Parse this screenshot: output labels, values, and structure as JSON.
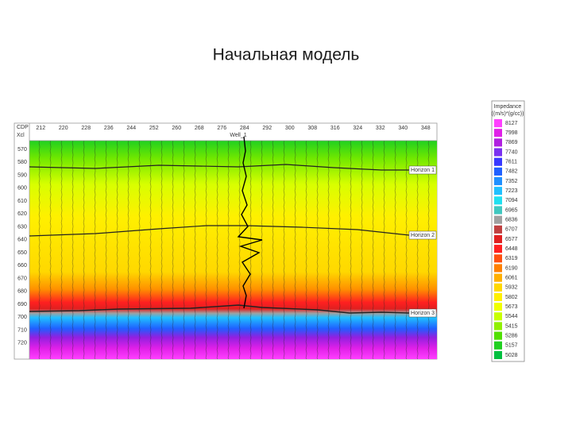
{
  "slide": {
    "title": "Начальная модель",
    "section": {
      "corner_labels": [
        "CDP",
        "Xcl"
      ],
      "cdp_labels": [
        "212",
        "220",
        "228",
        "236",
        "244",
        "252",
        "260",
        "268",
        "276",
        "284",
        "292",
        "300",
        "308",
        "316",
        "324",
        "332",
        "340",
        "348"
      ],
      "time_labels": [
        "570",
        "580",
        "590",
        "600",
        "610",
        "620",
        "630",
        "640",
        "650",
        "660",
        "670",
        "680",
        "690",
        "700",
        "710",
        "720"
      ],
      "well_label": "Well_1",
      "horizon_labels": [
        "Horizon 1",
        "Horizon 2",
        "Horizon 3"
      ]
    },
    "colorbar": {
      "title": [
        "Impedance",
        "((m/s)*(g/cc))"
      ],
      "entries": [
        {
          "label": "8127",
          "color": "#ff40ff"
        },
        {
          "label": "7998",
          "color": "#e020e8"
        },
        {
          "label": "7869",
          "color": "#b020e0"
        },
        {
          "label": "7740",
          "color": "#7a30f0"
        },
        {
          "label": "7611",
          "color": "#3838ff"
        },
        {
          "label": "7482",
          "color": "#2060ff"
        },
        {
          "label": "7352",
          "color": "#2090ff"
        },
        {
          "label": "7223",
          "color": "#20c0ff"
        },
        {
          "label": "7094",
          "color": "#20e0f0"
        },
        {
          "label": "6965",
          "color": "#40c8c0"
        },
        {
          "label": "6836",
          "color": "#a0a0a0"
        },
        {
          "label": "6707",
          "color": "#c04040"
        },
        {
          "label": "6577",
          "color": "#e02020"
        },
        {
          "label": "6448",
          "color": "#ff2020"
        },
        {
          "label": "6319",
          "color": "#ff5010"
        },
        {
          "label": "6190",
          "color": "#ff8000"
        },
        {
          "label": "6061",
          "color": "#ffb000"
        },
        {
          "label": "5932",
          "color": "#ffd800"
        },
        {
          "label": "5802",
          "color": "#fff000"
        },
        {
          "label": "5673",
          "color": "#f0ff00"
        },
        {
          "label": "5544",
          "color": "#c8ff00"
        },
        {
          "label": "5415",
          "color": "#90f000"
        },
        {
          "label": "5286",
          "color": "#50e000"
        },
        {
          "label": "5157",
          "color": "#20d020"
        },
        {
          "label": "5028",
          "color": "#00c040"
        }
      ]
    }
  }
}
